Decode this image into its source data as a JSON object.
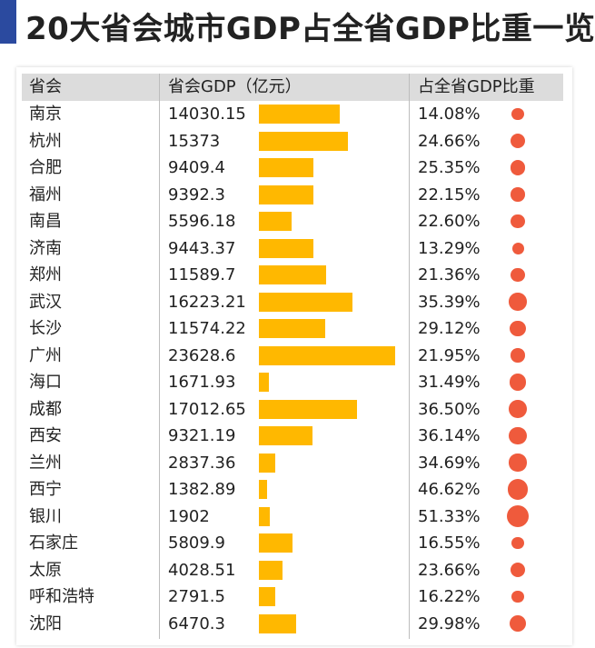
{
  "title": "20大省会城市GDP占全省GDP比重一览",
  "colors": {
    "accent": "#2b4a9f",
    "bar": "#ffb800",
    "dot": "#ef5a3c",
    "header_bg": "#dcdcdc"
  },
  "chart_data": {
    "type": "table",
    "columns": [
      "省会",
      "省会GDP（亿元）",
      "占全省GDP比重"
    ],
    "rows": [
      {
        "city": "南京",
        "gdp": 14030.15,
        "gdp_label": "14030.15",
        "share": 14.08,
        "share_label": "14.08%"
      },
      {
        "city": "杭州",
        "gdp": 15373,
        "gdp_label": "15373",
        "share": 24.66,
        "share_label": "24.66%"
      },
      {
        "city": "合肥",
        "gdp": 9409.4,
        "gdp_label": "9409.4",
        "share": 25.35,
        "share_label": "25.35%"
      },
      {
        "city": "福州",
        "gdp": 9392.3,
        "gdp_label": "9392.3",
        "share": 22.15,
        "share_label": "22.15%"
      },
      {
        "city": "南昌",
        "gdp": 5596.18,
        "gdp_label": "5596.18",
        "share": 22.6,
        "share_label": "22.60%"
      },
      {
        "city": "济南",
        "gdp": 9443.37,
        "gdp_label": "9443.37",
        "share": 13.29,
        "share_label": "13.29%"
      },
      {
        "city": "郑州",
        "gdp": 11589.7,
        "gdp_label": "11589.7",
        "share": 21.36,
        "share_label": "21.36%"
      },
      {
        "city": "武汉",
        "gdp": 16223.21,
        "gdp_label": "16223.21",
        "share": 35.39,
        "share_label": "35.39%"
      },
      {
        "city": "长沙",
        "gdp": 11574.22,
        "gdp_label": "11574.22",
        "share": 29.12,
        "share_label": "29.12%"
      },
      {
        "city": "广州",
        "gdp": 23628.6,
        "gdp_label": "23628.6",
        "share": 21.95,
        "share_label": "21.95%"
      },
      {
        "city": "海口",
        "gdp": 1671.93,
        "gdp_label": "1671.93",
        "share": 31.49,
        "share_label": "31.49%"
      },
      {
        "city": "成都",
        "gdp": 17012.65,
        "gdp_label": "17012.65",
        "share": 36.5,
        "share_label": "36.50%"
      },
      {
        "city": "西安",
        "gdp": 9321.19,
        "gdp_label": "9321.19",
        "share": 36.14,
        "share_label": "36.14%"
      },
      {
        "city": "兰州",
        "gdp": 2837.36,
        "gdp_label": "2837.36",
        "share": 34.69,
        "share_label": "34.69%"
      },
      {
        "city": "西宁",
        "gdp": 1382.89,
        "gdp_label": "1382.89",
        "share": 46.62,
        "share_label": "46.62%"
      },
      {
        "city": "银川",
        "gdp": 1902,
        "gdp_label": "1902",
        "share": 51.33,
        "share_label": "51.33%"
      },
      {
        "city": "石家庄",
        "gdp": 5809.9,
        "gdp_label": "5809.9",
        "share": 16.55,
        "share_label": "16.55%"
      },
      {
        "city": "太原",
        "gdp": 4028.51,
        "gdp_label": "4028.51",
        "share": 23.66,
        "share_label": "23.66%"
      },
      {
        "city": "呼和浩特",
        "gdp": 2791.5,
        "gdp_label": "2791.5",
        "share": 16.22,
        "share_label": "16.22%"
      },
      {
        "city": "沈阳",
        "gdp": 6470.3,
        "gdp_label": "6470.3",
        "share": 29.98,
        "share_label": "29.98%"
      }
    ]
  }
}
